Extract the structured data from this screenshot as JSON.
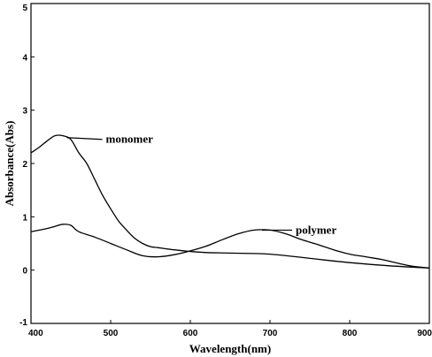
{
  "chart_data": {
    "type": "line",
    "xlabel": "Wavelength(nm)",
    "ylabel": "Absorbance(Abs)",
    "xlim": [
      400,
      900
    ],
    "ylim": [
      -1,
      5
    ],
    "xticks": [
      "400",
      "500",
      "600",
      "700",
      "800",
      "900"
    ],
    "yticks": [
      "-1",
      "0",
      "1",
      "2",
      "3",
      "4",
      "5"
    ],
    "grid": false,
    "series": [
      {
        "name": "monomer",
        "x": [
          400,
          410,
          420,
          430,
          440,
          450,
          460,
          470,
          480,
          490,
          500,
          510,
          520,
          530,
          540,
          550,
          560,
          580,
          600,
          620,
          650,
          700,
          750,
          800,
          850,
          900
        ],
        "y": [
          2.2,
          2.3,
          2.42,
          2.52,
          2.52,
          2.45,
          2.2,
          2.0,
          1.7,
          1.4,
          1.15,
          0.92,
          0.75,
          0.6,
          0.5,
          0.44,
          0.42,
          0.38,
          0.35,
          0.33,
          0.32,
          0.3,
          0.22,
          0.14,
          0.08,
          0.04
        ]
      },
      {
        "name": "polymer",
        "x": [
          400,
          420,
          430,
          440,
          450,
          460,
          480,
          500,
          520,
          540,
          560,
          580,
          600,
          620,
          640,
          660,
          680,
          700,
          720,
          740,
          760,
          780,
          800,
          820,
          840,
          860,
          880,
          900
        ],
        "y": [
          0.72,
          0.78,
          0.82,
          0.86,
          0.84,
          0.72,
          0.62,
          0.5,
          0.38,
          0.27,
          0.25,
          0.29,
          0.36,
          0.45,
          0.57,
          0.68,
          0.75,
          0.75,
          0.68,
          0.57,
          0.48,
          0.38,
          0.3,
          0.25,
          0.2,
          0.13,
          0.07,
          0.04
        ]
      }
    ],
    "annotations": [
      {
        "text": "monomer",
        "series": "monomer",
        "anchor_x": 445
      },
      {
        "text": "polymer",
        "series": "polymer",
        "anchor_x": 690
      }
    ]
  }
}
